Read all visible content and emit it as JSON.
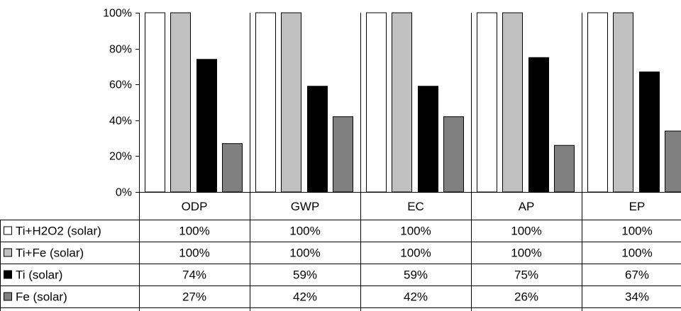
{
  "chart_data": {
    "type": "bar",
    "categories": [
      "ODP",
      "GWP",
      "EC",
      "AP",
      "EP"
    ],
    "series": [
      {
        "name": "Ti+H2O2 (solar)",
        "color": "#ffffff",
        "values": [
          100,
          100,
          100,
          100,
          100
        ],
        "labels": [
          "100%",
          "100%",
          "100%",
          "100%",
          "100%"
        ]
      },
      {
        "name": "Ti+Fe (solar)",
        "color": "#c0c0c0",
        "values": [
          100,
          100,
          100,
          100,
          100
        ],
        "labels": [
          "100%",
          "100%",
          "100%",
          "100%",
          "100%"
        ]
      },
      {
        "name": "Ti (solar)",
        "color": "#000000",
        "values": [
          74,
          59,
          59,
          75,
          67
        ],
        "labels": [
          "74%",
          "59%",
          "59%",
          "75%",
          "67%"
        ]
      },
      {
        "name": "Fe (solar)",
        "color": "#808080",
        "values": [
          27,
          42,
          42,
          26,
          34
        ],
        "labels": [
          "27%",
          "42%",
          "42%",
          "26%",
          "34%"
        ]
      }
    ],
    "yticks": [
      "0%",
      "20%",
      "40%",
      "60%",
      "80%",
      "100%"
    ],
    "ylim": [
      0,
      100
    ],
    "grid": false,
    "legend": "data-table-left",
    "data_table": true,
    "title": "",
    "xlabel": "",
    "ylabel": ""
  }
}
